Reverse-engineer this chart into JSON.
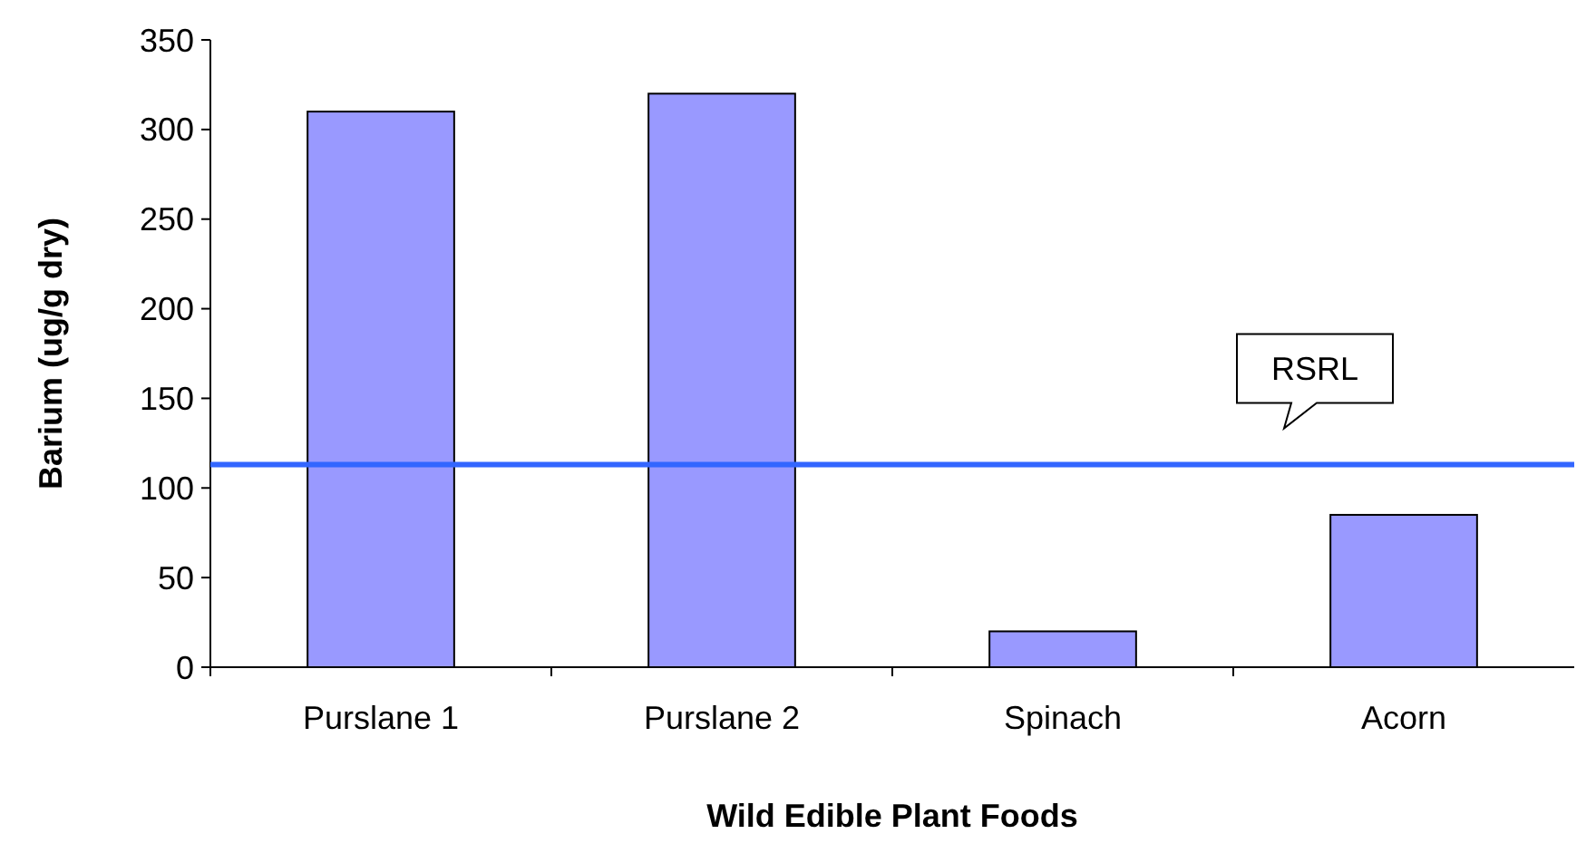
{
  "chart_data": {
    "type": "bar",
    "xlabel": "Wild Edible Plant Foods",
    "ylabel": "Barium (ug/g dry)",
    "categories": [
      "Purslane 1",
      "Purslane 2",
      "Spinach",
      "Acorn"
    ],
    "values": [
      310,
      320,
      20,
      85
    ],
    "color": "#9999ff",
    "ylim": [
      0,
      350
    ],
    "yticks": [
      0,
      50,
      100,
      150,
      200,
      250,
      300,
      350
    ],
    "grid": false,
    "ref_lines": [
      {
        "axis": "y",
        "value": 113,
        "label": "RSRL",
        "color": "#3366ff",
        "line_style": "solid"
      }
    ]
  }
}
